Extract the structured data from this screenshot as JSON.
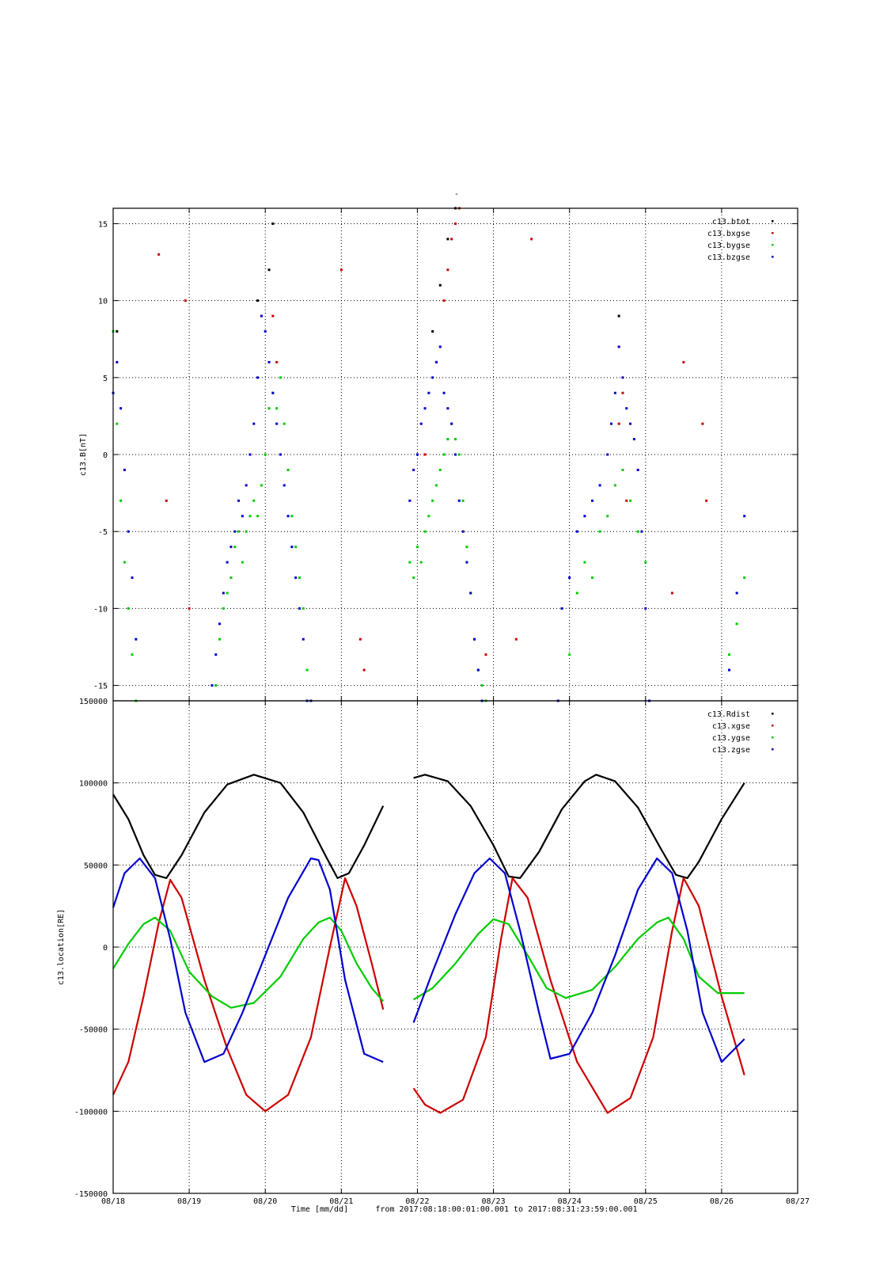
{
  "figure": {
    "title": "-",
    "footer": {
      "xlabel": "Time [mm/dd]",
      "range_label": "from 2017:08:18:00:01:00.001  to  2017:08:31:23:59:00.001"
    }
  },
  "chart_data": [
    {
      "type": "scatter",
      "title": "-",
      "ylabel": "c13.B[nT]",
      "xlabel": "",
      "x_unit": "day of August 2017",
      "xlim": [
        18,
        27
      ],
      "ylim": [
        -16,
        16
      ],
      "yticks": [
        -15,
        -10,
        -5,
        0,
        5,
        10,
        15
      ],
      "xticks": [
        18,
        19,
        20,
        21,
        22,
        23,
        24,
        25,
        26,
        27
      ],
      "xtick_labels": [
        "08/18",
        "08/19",
        "08/20",
        "08/21",
        "08/22",
        "08/23",
        "08/24",
        "08/25",
        "08/26",
        "08/27"
      ],
      "grid": true,
      "legend_position": "top-right",
      "series": [
        {
          "name": "c13.btot",
          "color": "#000000",
          "x": [
            18.05,
            19.9,
            20.05,
            20.1,
            22.2,
            22.3,
            22.4,
            22.5,
            24.65
          ],
          "y": [
            8,
            10,
            12,
            15,
            8,
            11,
            14,
            16,
            9
          ]
        },
        {
          "name": "c13.bxgse",
          "color": "#cc0000",
          "x": [
            18.6,
            18.7,
            18.95,
            19.0,
            20.1,
            20.15,
            21.0,
            21.25,
            21.3,
            22.1,
            22.25,
            22.35,
            22.4,
            22.45,
            22.5,
            22.55,
            22.9,
            23.3,
            23.5,
            24.65,
            24.7,
            24.75,
            25.35,
            25.5,
            25.75,
            25.8
          ],
          "y": [
            13,
            -3,
            10,
            -10,
            9,
            6,
            12,
            -12,
            -14,
            0,
            6,
            10,
            12,
            14,
            15,
            16,
            -13,
            -12,
            14,
            2,
            4,
            -3,
            -9,
            6,
            2,
            -3
          ]
        },
        {
          "name": "c13.bygse",
          "color": "#00cc00",
          "x": [
            18.0,
            18.05,
            18.1,
            18.15,
            18.2,
            18.25,
            18.3,
            19.35,
            19.4,
            19.45,
            19.5,
            19.55,
            19.6,
            19.65,
            19.7,
            19.75,
            19.8,
            19.85,
            19.9,
            19.95,
            20.0,
            20.05,
            20.1,
            20.15,
            20.2,
            20.25,
            20.3,
            20.35,
            20.4,
            20.45,
            20.5,
            20.55,
            20.6,
            21.9,
            21.95,
            22.0,
            22.05,
            22.1,
            22.15,
            22.2,
            22.25,
            22.3,
            22.35,
            22.4,
            22.45,
            22.5,
            22.55,
            22.6,
            22.65,
            22.7,
            22.75,
            22.8,
            22.85,
            22.9,
            24.0,
            24.1,
            24.2,
            24.3,
            24.4,
            24.5,
            24.6,
            24.7,
            24.8,
            24.9,
            25.0,
            26.1,
            26.2,
            26.3
          ],
          "y": [
            8,
            2,
            -3,
            -7,
            -10,
            -13,
            -16,
            -15,
            -12,
            -10,
            -9,
            -8,
            -6,
            -5,
            -7,
            -5,
            -4,
            -3,
            -4,
            -2,
            0,
            3,
            4,
            3,
            5,
            2,
            -1,
            -4,
            -6,
            -8,
            -10,
            -14,
            -16,
            -7,
            -8,
            -6,
            -7,
            -5,
            -4,
            -3,
            -2,
            -1,
            0,
            1,
            2,
            1,
            0,
            -3,
            -6,
            -9,
            -12,
            -14,
            -15,
            -16,
            -13,
            -9,
            -7,
            -8,
            -5,
            -4,
            -2,
            -1,
            -3,
            -5,
            -7,
            -13,
            -11,
            -8
          ]
        },
        {
          "name": "c13.bzgse",
          "color": "#0000cc",
          "x": [
            18.0,
            18.05,
            18.1,
            18.15,
            18.2,
            18.25,
            18.3,
            19.3,
            19.35,
            19.4,
            19.45,
            19.5,
            19.55,
            19.6,
            19.65,
            19.7,
            19.75,
            19.8,
            19.85,
            19.9,
            19.95,
            20.0,
            20.05,
            20.1,
            20.15,
            20.2,
            20.25,
            20.3,
            20.35,
            20.4,
            20.45,
            20.5,
            20.55,
            20.6,
            21.9,
            21.95,
            22.0,
            22.05,
            22.1,
            22.15,
            22.2,
            22.25,
            22.3,
            22.35,
            22.4,
            22.45,
            22.5,
            22.55,
            22.6,
            22.65,
            22.7,
            22.75,
            22.8,
            22.85,
            23.85,
            23.9,
            24.0,
            24.1,
            24.2,
            24.3,
            24.4,
            24.5,
            24.55,
            24.6,
            24.65,
            24.7,
            24.75,
            24.8,
            24.85,
            24.9,
            24.95,
            25.0,
            25.05,
            26.1,
            26.2,
            26.3
          ],
          "y": [
            4,
            6,
            3,
            -1,
            -5,
            -8,
            -12,
            -15,
            -13,
            -11,
            -9,
            -7,
            -6,
            -5,
            -3,
            -4,
            -2,
            0,
            2,
            5,
            9,
            8,
            6,
            4,
            2,
            0,
            -2,
            -4,
            -6,
            -8,
            -10,
            -12,
            -16,
            -16,
            -3,
            -1,
            0,
            2,
            3,
            4,
            5,
            6,
            7,
            4,
            3,
            2,
            0,
            -3,
            -5,
            -7,
            -9,
            -12,
            -14,
            -16,
            -16,
            -10,
            -8,
            -5,
            -4,
            -3,
            -2,
            0,
            2,
            4,
            7,
            5,
            3,
            2,
            1,
            -1,
            -5,
            -10,
            -16,
            -14,
            -9,
            -4
          ]
        }
      ]
    },
    {
      "type": "line",
      "ylabel": "c13.location[RE]",
      "xlabel": "Time [mm/dd]",
      "x_unit": "day of August 2017",
      "xlim": [
        18,
        27
      ],
      "ylim": [
        -150000,
        150000
      ],
      "yticks": [
        -150000,
        -100000,
        -50000,
        0,
        50000,
        100000,
        150000
      ],
      "xticks": [
        18,
        19,
        20,
        21,
        22,
        23,
        24,
        25,
        26,
        27
      ],
      "xtick_labels": [
        "08/18",
        "08/19",
        "08/20",
        "08/21",
        "08/22",
        "08/23",
        "08/24",
        "08/25",
        "08/26",
        "08/27"
      ],
      "grid": true,
      "legend_position": "top-right",
      "series": [
        {
          "name": "c13.Rdist",
          "color": "#000000",
          "segments": [
            {
              "x": [
                18.0,
                18.2,
                18.4,
                18.55,
                18.7,
                18.9,
                19.2,
                19.5,
                19.85,
                20.2,
                20.5,
                20.8,
                20.95,
                21.1,
                21.3,
                21.55
              ],
              "y": [
                93000,
                78000,
                56000,
                44000,
                42000,
                56000,
                82000,
                99000,
                105000,
                100000,
                82000,
                55000,
                42000,
                45000,
                62000,
                86000
              ]
            },
            {
              "x": [
                21.95,
                22.1,
                22.4,
                22.7,
                23.0,
                23.2,
                23.35,
                23.6,
                23.9,
                24.2,
                24.35,
                24.6,
                24.9,
                25.2,
                25.4,
                25.55,
                25.7,
                26.0,
                26.3
              ],
              "y": [
                103000,
                105000,
                101000,
                86000,
                62000,
                43000,
                42000,
                58000,
                84000,
                101000,
                105000,
                101000,
                85000,
                60000,
                44000,
                42000,
                52000,
                78000,
                100000
              ]
            }
          ]
        },
        {
          "name": "c13.xgse",
          "color": "#cc0000",
          "segments": [
            {
              "x": [
                18.0,
                18.2,
                18.4,
                18.6,
                18.75,
                18.9,
                19.2,
                19.5,
                19.75,
                20.0,
                20.3,
                20.6,
                20.85,
                21.05,
                21.2,
                21.4,
                21.55
              ],
              "y": [
                -90000,
                -70000,
                -30000,
                15000,
                41000,
                30000,
                -20000,
                -62000,
                -90000,
                -100000,
                -90000,
                -55000,
                0,
                42000,
                25000,
                -10000,
                -38000
              ]
            },
            {
              "x": [
                21.95,
                22.1,
                22.3,
                22.6,
                22.9,
                23.1,
                23.25,
                23.45,
                23.75,
                24.1,
                24.5,
                24.8,
                25.1,
                25.35,
                25.5,
                25.7,
                26.0,
                26.3
              ],
              "y": [
                -86000,
                -96000,
                -101000,
                -93000,
                -55000,
                5000,
                42000,
                30000,
                -20000,
                -70000,
                -101000,
                -92000,
                -55000,
                10000,
                42000,
                25000,
                -30000,
                -78000
              ]
            }
          ]
        },
        {
          "name": "c13.ygse",
          "color": "#00cc00",
          "segments": [
            {
              "x": [
                18.0,
                18.2,
                18.4,
                18.55,
                18.75,
                19.0,
                19.3,
                19.55,
                19.85,
                20.2,
                20.5,
                20.7,
                20.85,
                21.0,
                21.2,
                21.4,
                21.55
              ],
              "y": [
                -13000,
                2000,
                14000,
                18000,
                10000,
                -15000,
                -30000,
                -37000,
                -34000,
                -18000,
                5000,
                15000,
                18000,
                10000,
                -10000,
                -25000,
                -33000
              ]
            },
            {
              "x": [
                21.95,
                22.2,
                22.5,
                22.8,
                23.0,
                23.2,
                23.45,
                23.7,
                23.95,
                24.3,
                24.6,
                24.9,
                25.15,
                25.3,
                25.5,
                25.7,
                25.95,
                26.3
              ],
              "y": [
                -32000,
                -25000,
                -10000,
                8000,
                17000,
                14000,
                -5000,
                -25000,
                -31000,
                -26000,
                -12000,
                5000,
                15000,
                18000,
                5000,
                -18000,
                -28000,
                -28000
              ]
            }
          ]
        },
        {
          "name": "c13.zgse",
          "color": "#0000cc",
          "segments": [
            {
              "x": [
                18.0,
                18.15,
                18.35,
                18.55,
                18.75,
                18.95,
                19.2,
                19.45,
                19.7,
                20.0,
                20.3,
                20.6,
                20.7,
                20.85,
                21.05,
                21.3,
                21.55
              ],
              "y": [
                24000,
                45000,
                54000,
                42000,
                5000,
                -40000,
                -70000,
                -65000,
                -40000,
                -5000,
                30000,
                54000,
                53000,
                35000,
                -20000,
                -65000,
                -70000
              ]
            },
            {
              "x": [
                21.95,
                22.2,
                22.5,
                22.75,
                22.95,
                23.15,
                23.35,
                23.6,
                23.75,
                24.0,
                24.3,
                24.6,
                24.9,
                25.15,
                25.35,
                25.55,
                25.75,
                26.0,
                26.3
              ],
              "y": [
                -46000,
                -15000,
                20000,
                45000,
                54000,
                45000,
                10000,
                -40000,
                -68000,
                -65000,
                -40000,
                -5000,
                35000,
                54000,
                45000,
                10000,
                -40000,
                -70000,
                -56000
              ]
            }
          ]
        }
      ]
    }
  ]
}
